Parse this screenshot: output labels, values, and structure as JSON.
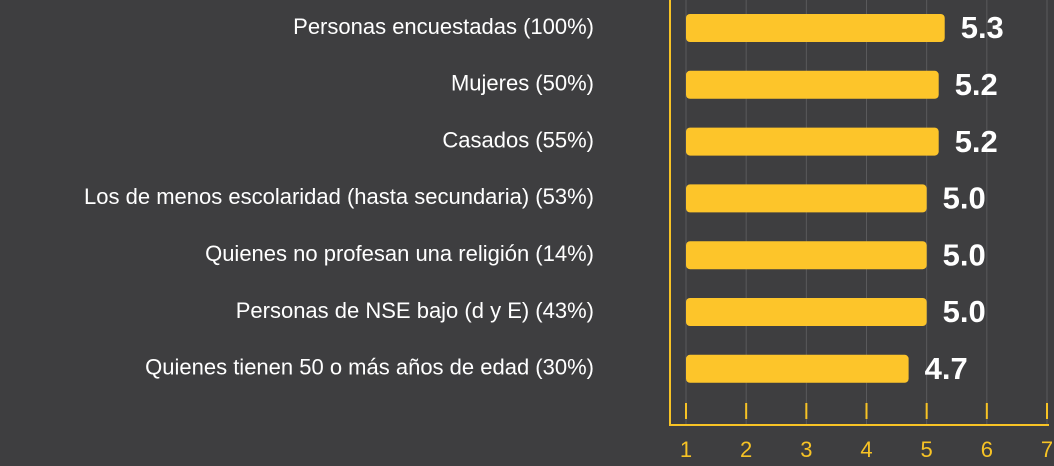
{
  "chart_data": {
    "type": "bar",
    "orientation": "horizontal",
    "categories": [
      "Personas encuestadas (100%)",
      "Mujeres (50%)",
      "Casados (55%)",
      "Los de menos escolaridad (hasta secundaria) (53%)",
      "Quienes no profesan una religión (14%)",
      "Personas de NSE bajo (d y E) (43%)",
      "Quienes tienen 50 o más años de edad (30%)"
    ],
    "values": [
      5.3,
      5.2,
      5.2,
      5.0,
      5.0,
      5.0,
      4.7
    ],
    "value_labels": [
      "5.3",
      "5.2",
      "5.2",
      "5.0",
      "5.0",
      "5.0",
      "4.7"
    ],
    "color": "#fdc52a",
    "xlim": [
      1,
      7
    ],
    "xticks": [
      1,
      2,
      3,
      4,
      5,
      6,
      7
    ],
    "grid": true
  }
}
